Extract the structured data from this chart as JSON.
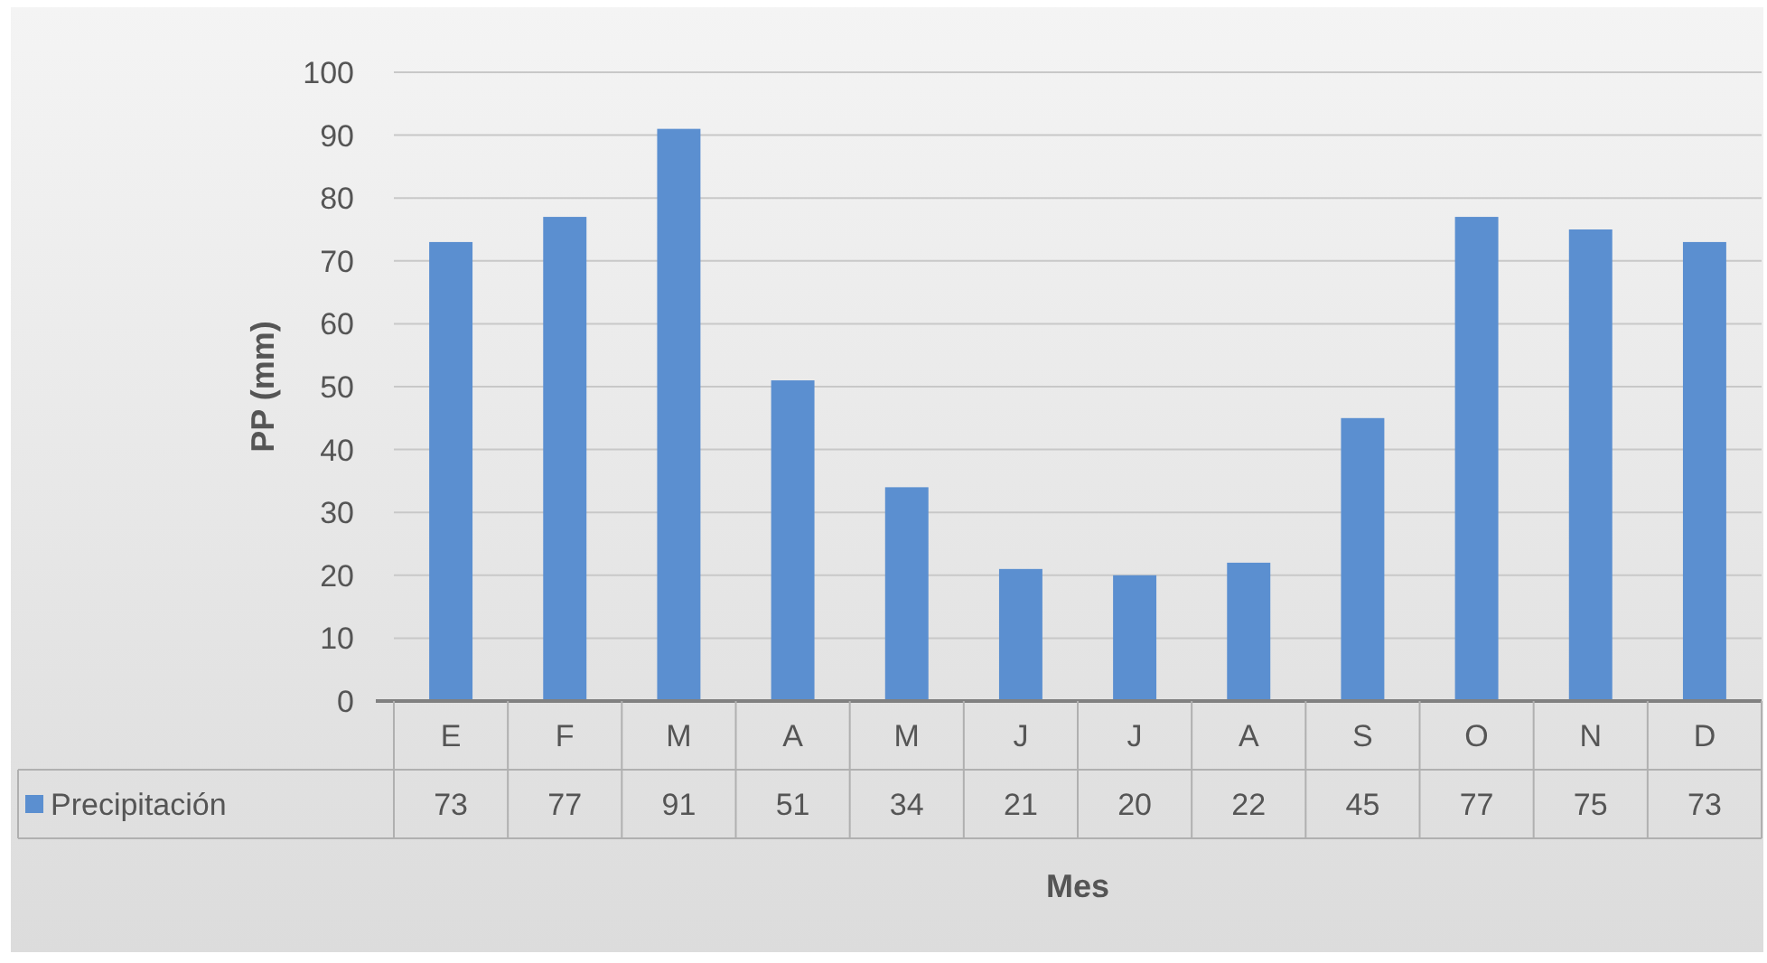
{
  "chart_data": {
    "type": "bar",
    "categories": [
      "E",
      "F",
      "M",
      "A",
      "M",
      "J",
      "J",
      "A",
      "S",
      "O",
      "N",
      "D"
    ],
    "series": [
      {
        "name": "Precipitación",
        "color": "#5b8fd0",
        "values": [
          73,
          77,
          91,
          51,
          34,
          21,
          20,
          22,
          45,
          77,
          75,
          73
        ]
      }
    ],
    "xlabel": "Mes",
    "ylabel": "PP (mm)",
    "ylim": [
      0,
      100
    ],
    "yticks": [
      0,
      10,
      20,
      30,
      40,
      50,
      60,
      70,
      80,
      90,
      100
    ],
    "grid": "y",
    "data_labels": true,
    "legend": "bottom left"
  }
}
